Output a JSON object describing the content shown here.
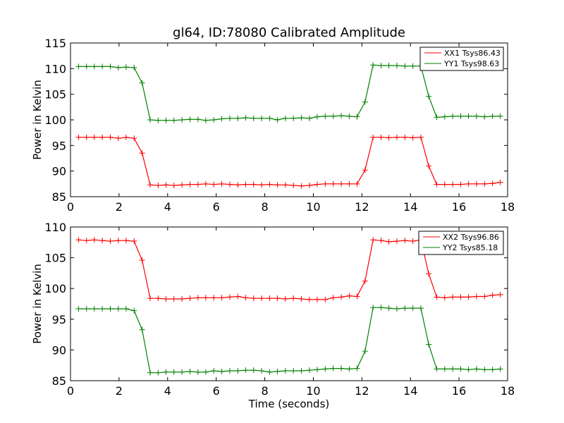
{
  "chart_data": [
    {
      "type": "line",
      "title": "gl64, ID:78080 Calibrated Amplitude",
      "xlabel": "",
      "ylabel": "Power in Kelvin",
      "xlim": [
        0,
        18
      ],
      "ylim": [
        85,
        115
      ],
      "xticks": [
        0,
        2,
        4,
        6,
        8,
        10,
        12,
        14,
        16,
        18
      ],
      "yticks": [
        85,
        90,
        95,
        100,
        105,
        110,
        115
      ],
      "legend_position": "top-right",
      "grid": false,
      "x": [
        0.33,
        0.66,
        0.98,
        1.31,
        1.64,
        1.97,
        2.29,
        2.62,
        2.95,
        3.28,
        3.61,
        3.93,
        4.26,
        4.59,
        4.92,
        5.25,
        5.57,
        5.9,
        6.23,
        6.56,
        6.89,
        7.21,
        7.54,
        7.87,
        8.2,
        8.52,
        8.85,
        9.18,
        9.51,
        9.84,
        10.16,
        10.49,
        10.82,
        11.15,
        11.48,
        11.8,
        12.13,
        12.46,
        12.79,
        13.11,
        13.44,
        13.77,
        14.1,
        14.43,
        14.75,
        15.08,
        15.41,
        15.74,
        16.07,
        16.39,
        16.72,
        17.05,
        17.38,
        17.7
      ],
      "series": [
        {
          "name": "XX1 Tsys86.43",
          "color": "#ff0000",
          "values": [
            96.6,
            96.6,
            96.6,
            96.6,
            96.6,
            96.4,
            96.6,
            96.4,
            93.5,
            87.3,
            87.2,
            87.3,
            87.2,
            87.3,
            87.4,
            87.4,
            87.5,
            87.4,
            87.5,
            87.4,
            87.3,
            87.4,
            87.4,
            87.3,
            87.4,
            87.3,
            87.3,
            87.2,
            87.1,
            87.2,
            87.4,
            87.5,
            87.5,
            87.5,
            87.5,
            87.5,
            90.2,
            96.6,
            96.6,
            96.5,
            96.6,
            96.6,
            96.5,
            96.6,
            91.0,
            87.4,
            87.4,
            87.4,
            87.4,
            87.5,
            87.5,
            87.5,
            87.6,
            87.8
          ]
        },
        {
          "name": "YY1 Tsys98.63",
          "color": "#008000",
          "values": [
            110.4,
            110.4,
            110.4,
            110.4,
            110.4,
            110.2,
            110.3,
            110.2,
            107.2,
            100.0,
            99.9,
            99.9,
            99.9,
            100.0,
            100.1,
            100.1,
            99.9,
            100.0,
            100.2,
            100.3,
            100.3,
            100.4,
            100.3,
            100.3,
            100.3,
            100.0,
            100.3,
            100.3,
            100.4,
            100.3,
            100.6,
            100.7,
            100.7,
            100.8,
            100.7,
            100.6,
            103.5,
            110.7,
            110.6,
            110.6,
            110.6,
            110.5,
            110.5,
            110.5,
            104.6,
            100.5,
            100.6,
            100.7,
            100.7,
            100.7,
            100.7,
            100.6,
            100.7,
            100.7
          ]
        }
      ]
    },
    {
      "type": "line",
      "title": "",
      "xlabel": "Time (seconds)",
      "ylabel": "Power in Kelvin",
      "xlim": [
        0,
        18
      ],
      "ylim": [
        85,
        110
      ],
      "xticks": [
        0,
        2,
        4,
        6,
        8,
        10,
        12,
        14,
        16,
        18
      ],
      "yticks": [
        85,
        90,
        95,
        100,
        105,
        110
      ],
      "legend_position": "top-right",
      "grid": false,
      "x": [
        0.33,
        0.66,
        0.98,
        1.31,
        1.64,
        1.97,
        2.29,
        2.62,
        2.95,
        3.28,
        3.61,
        3.93,
        4.26,
        4.59,
        4.92,
        5.25,
        5.57,
        5.9,
        6.23,
        6.56,
        6.89,
        7.21,
        7.54,
        7.87,
        8.2,
        8.52,
        8.85,
        9.18,
        9.51,
        9.84,
        10.16,
        10.49,
        10.82,
        11.15,
        11.48,
        11.8,
        12.13,
        12.46,
        12.79,
        13.11,
        13.44,
        13.77,
        14.1,
        14.43,
        14.75,
        15.08,
        15.41,
        15.74,
        16.07,
        16.39,
        16.72,
        17.05,
        17.38,
        17.7
      ],
      "series": [
        {
          "name": "XX2 Tsys96.86",
          "color": "#ff0000",
          "values": [
            107.9,
            107.8,
            107.9,
            107.8,
            107.7,
            107.8,
            107.8,
            107.7,
            104.6,
            98.4,
            98.4,
            98.3,
            98.3,
            98.3,
            98.4,
            98.5,
            98.5,
            98.5,
            98.5,
            98.6,
            98.7,
            98.5,
            98.4,
            98.4,
            98.4,
            98.4,
            98.3,
            98.4,
            98.3,
            98.2,
            98.2,
            98.2,
            98.5,
            98.6,
            98.8,
            98.7,
            101.2,
            107.9,
            107.8,
            107.6,
            107.7,
            107.8,
            107.7,
            107.9,
            102.4,
            98.6,
            98.5,
            98.6,
            98.6,
            98.6,
            98.7,
            98.7,
            98.9,
            99.0
          ]
        },
        {
          "name": "YY2 Tsys85.18",
          "color": "#008000",
          "values": [
            96.7,
            96.7,
            96.7,
            96.7,
            96.7,
            96.7,
            96.7,
            96.4,
            93.3,
            86.3,
            86.3,
            86.4,
            86.4,
            86.4,
            86.5,
            86.4,
            86.4,
            86.6,
            86.5,
            86.6,
            86.6,
            86.7,
            86.7,
            86.6,
            86.4,
            86.5,
            86.6,
            86.6,
            86.6,
            86.7,
            86.8,
            86.9,
            87.0,
            87.0,
            86.9,
            87.0,
            89.8,
            96.9,
            96.9,
            96.8,
            96.7,
            96.8,
            96.8,
            96.8,
            90.9,
            86.9,
            86.9,
            86.9,
            86.9,
            86.8,
            86.9,
            86.8,
            86.8,
            86.9
          ]
        }
      ]
    }
  ]
}
